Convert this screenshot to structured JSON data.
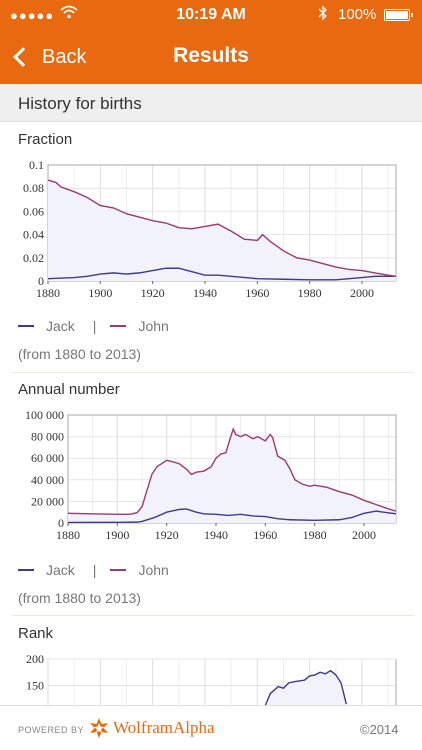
{
  "status": {
    "time": "10:19 AM",
    "battery": "100%",
    "signal_icon": "signal-dots-icon",
    "wifi_icon": "wifi-icon",
    "bluetooth_icon": "bluetooth-icon"
  },
  "nav": {
    "back_label": "Back",
    "title": "Results"
  },
  "section": {
    "title": "History for births"
  },
  "colors": {
    "accent": "#e8690f",
    "jack": "#3d3a8c",
    "john": "#9a3a6e",
    "fill": "#f2f2fc"
  },
  "pods": [
    {
      "title": "Fraction",
      "legend": [
        "Jack",
        "John"
      ],
      "range": "(from 1880 to 2013)"
    },
    {
      "title": "Annual number",
      "legend": [
        "Jack",
        "John"
      ],
      "range": "(from 1880 to 2013)"
    },
    {
      "title": "Rank"
    }
  ],
  "chart_data": [
    {
      "type": "line",
      "xlim": [
        1880,
        2013
      ],
      "ylim": [
        0,
        0.1
      ],
      "x_ticks": [
        "1880",
        "1900",
        "1920",
        "1940",
        "1960",
        "1980",
        "2000"
      ],
      "y_ticks": [
        "0",
        "0.02",
        "0.04",
        "0.06",
        "0.08",
        "0.1"
      ],
      "series": [
        {
          "name": "Jack",
          "x": [
            1880,
            1890,
            1895,
            1900,
            1905,
            1910,
            1915,
            1920,
            1925,
            1930,
            1935,
            1940,
            1945,
            1950,
            1960,
            1970,
            1980,
            1990,
            2000,
            2005,
            2010,
            2013
          ],
          "values": [
            0.002,
            0.003,
            0.004,
            0.006,
            0.007,
            0.006,
            0.007,
            0.009,
            0.011,
            0.011,
            0.008,
            0.005,
            0.005,
            0.004,
            0.002,
            0.0015,
            0.001,
            0.001,
            0.003,
            0.004,
            0.004,
            0.004
          ]
        },
        {
          "name": "John",
          "x": [
            1880,
            1883,
            1885,
            1890,
            1895,
            1900,
            1905,
            1910,
            1915,
            1920,
            1925,
            1930,
            1935,
            1940,
            1945,
            1950,
            1955,
            1960,
            1962,
            1965,
            1970,
            1975,
            1980,
            1985,
            1990,
            1995,
            2000,
            2005,
            2010,
            2013
          ],
          "values": [
            0.087,
            0.085,
            0.081,
            0.077,
            0.072,
            0.065,
            0.063,
            0.058,
            0.055,
            0.052,
            0.05,
            0.046,
            0.045,
            0.047,
            0.049,
            0.043,
            0.036,
            0.035,
            0.04,
            0.034,
            0.026,
            0.02,
            0.018,
            0.015,
            0.012,
            0.01,
            0.009,
            0.007,
            0.005,
            0.004
          ]
        }
      ]
    },
    {
      "type": "line",
      "xlim": [
        1880,
        2013
      ],
      "ylim": [
        0,
        100000
      ],
      "x_ticks": [
        "1880",
        "1900",
        "1920",
        "1940",
        "1960",
        "1980",
        "2000"
      ],
      "y_ticks": [
        "0",
        "20 000",
        "40 000",
        "60 000",
        "80 000",
        "100 000"
      ],
      "series": [
        {
          "name": "Jack",
          "x": [
            1880,
            1900,
            1908,
            1910,
            1915,
            1920,
            1925,
            1928,
            1932,
            1935,
            1940,
            1945,
            1950,
            1955,
            1960,
            1965,
            1970,
            1980,
            1990,
            1995,
            2000,
            2005,
            2008,
            2013
          ],
          "values": [
            500,
            600,
            800,
            1500,
            5000,
            10000,
            12500,
            13000,
            10000,
            8500,
            8000,
            7000,
            8000,
            6500,
            6000,
            4000,
            3000,
            2500,
            3000,
            5000,
            9000,
            11000,
            10000,
            8500
          ]
        },
        {
          "name": "John",
          "x": [
            1880,
            1890,
            1900,
            1905,
            1908,
            1910,
            1912,
            1914,
            1916,
            1918,
            1920,
            1922,
            1925,
            1928,
            1930,
            1932,
            1935,
            1938,
            1940,
            1942,
            1944,
            1946,
            1947,
            1948,
            1950,
            1952,
            1955,
            1957,
            1960,
            1962,
            1963,
            1965,
            1968,
            1970,
            1972,
            1975,
            1978,
            1980,
            1985,
            1990,
            1995,
            2000,
            2005,
            2010,
            2013
          ],
          "values": [
            9000,
            8500,
            8000,
            8000,
            9500,
            15000,
            30000,
            45000,
            52000,
            55000,
            58000,
            57000,
            55000,
            50000,
            45000,
            47000,
            48000,
            52000,
            60000,
            64000,
            65000,
            80000,
            87000,
            82000,
            80000,
            82000,
            78000,
            80000,
            76000,
            82000,
            79000,
            62000,
            58000,
            50000,
            40000,
            36000,
            34000,
            35000,
            33000,
            29000,
            26000,
            21000,
            17000,
            13000,
            11000
          ]
        }
      ]
    },
    {
      "type": "line",
      "xlim": [
        1880,
        2013
      ],
      "ylim": [
        100,
        200
      ],
      "y_ticks": [
        "150",
        "200"
      ],
      "series": [
        {
          "name": "Jack",
          "x": [
            1963,
            1965,
            1968,
            1970,
            1972,
            1975,
            1978,
            1980,
            1982,
            1984,
            1986,
            1988,
            1990,
            1992,
            1994
          ],
          "values": [
            112,
            135,
            148,
            145,
            155,
            158,
            160,
            168,
            170,
            175,
            172,
            178,
            170,
            155,
            115
          ]
        }
      ]
    }
  ],
  "footer": {
    "powered": "POWERED BY",
    "brand": "WolframAlpha",
    "copyright": "©2014",
    "logo_icon": "wolfram-star-icon"
  }
}
